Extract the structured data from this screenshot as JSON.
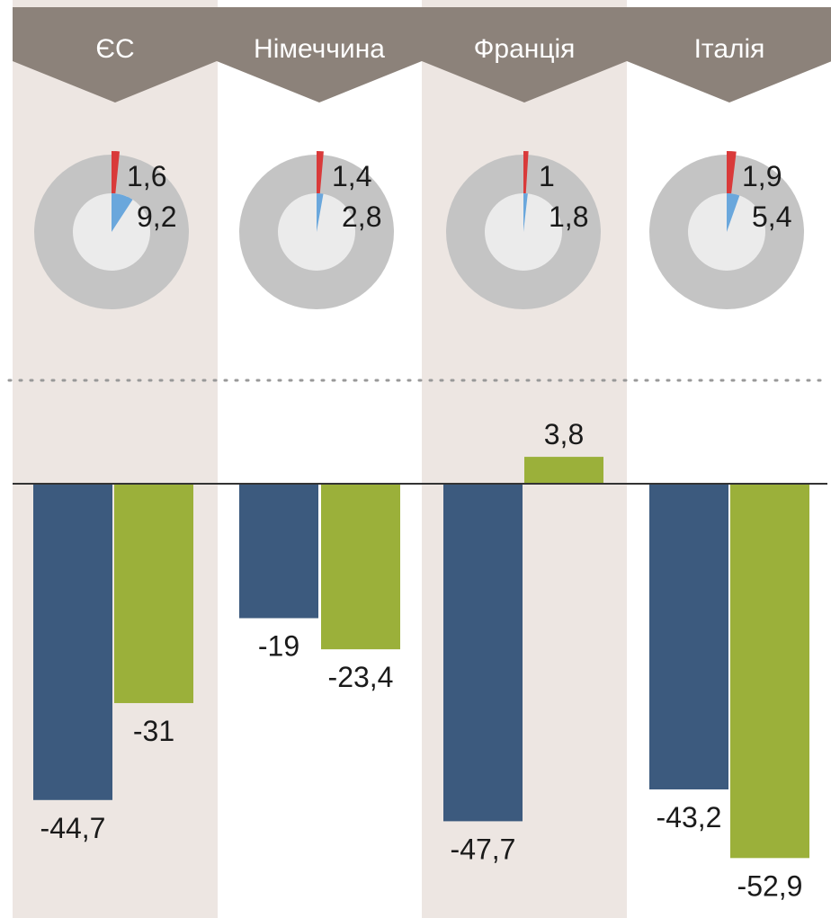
{
  "colors": {
    "header_bg": "#8c827a",
    "header_text": "#ffffff",
    "band_bg": "#ede6e2",
    "donut_ring": "#c4c4c4",
    "donut_center": "#ebebeb",
    "red_slice": "#d93a3a",
    "blue_slice": "#6aa7dc",
    "bar_navy": "#3c5a7e",
    "bar_green": "#9bb03a",
    "baseline": "#333333",
    "dots": "#999999",
    "label_text": "#1a1a1a"
  },
  "chart_data": [
    {
      "type": "pie",
      "categories": [
        "ЄС",
        "Німеччина",
        "Франція",
        "Італія"
      ],
      "series": [
        {
          "values": [
            1.6,
            1.4,
            1,
            1.9
          ],
          "color": "red"
        },
        {
          "values": [
            9.2,
            2.8,
            1.8,
            5.4
          ],
          "color": "blue"
        }
      ],
      "labels": {
        "red": [
          "1,6",
          "1,4",
          "1",
          "1,9"
        ],
        "blue": [
          "9,2",
          "2,8",
          "1,8",
          "5,4"
        ]
      }
    },
    {
      "type": "bar",
      "categories": [
        "ЄС",
        "Німеччина",
        "Франція",
        "Італія"
      ],
      "series": [
        {
          "values": [
            -44.7,
            -19,
            -47.7,
            -43.2
          ],
          "labels": [
            "-44,7",
            "-19",
            "-47,7",
            "-43,2"
          ],
          "color": "navy"
        },
        {
          "values": [
            -31,
            -23.4,
            3.8,
            -52.9
          ],
          "labels": [
            "-31",
            "-23,4",
            "3,8",
            "-52,9"
          ],
          "color": "green"
        }
      ],
      "ylim": [
        -60,
        10
      ],
      "grid": false,
      "legend": "none"
    }
  ]
}
